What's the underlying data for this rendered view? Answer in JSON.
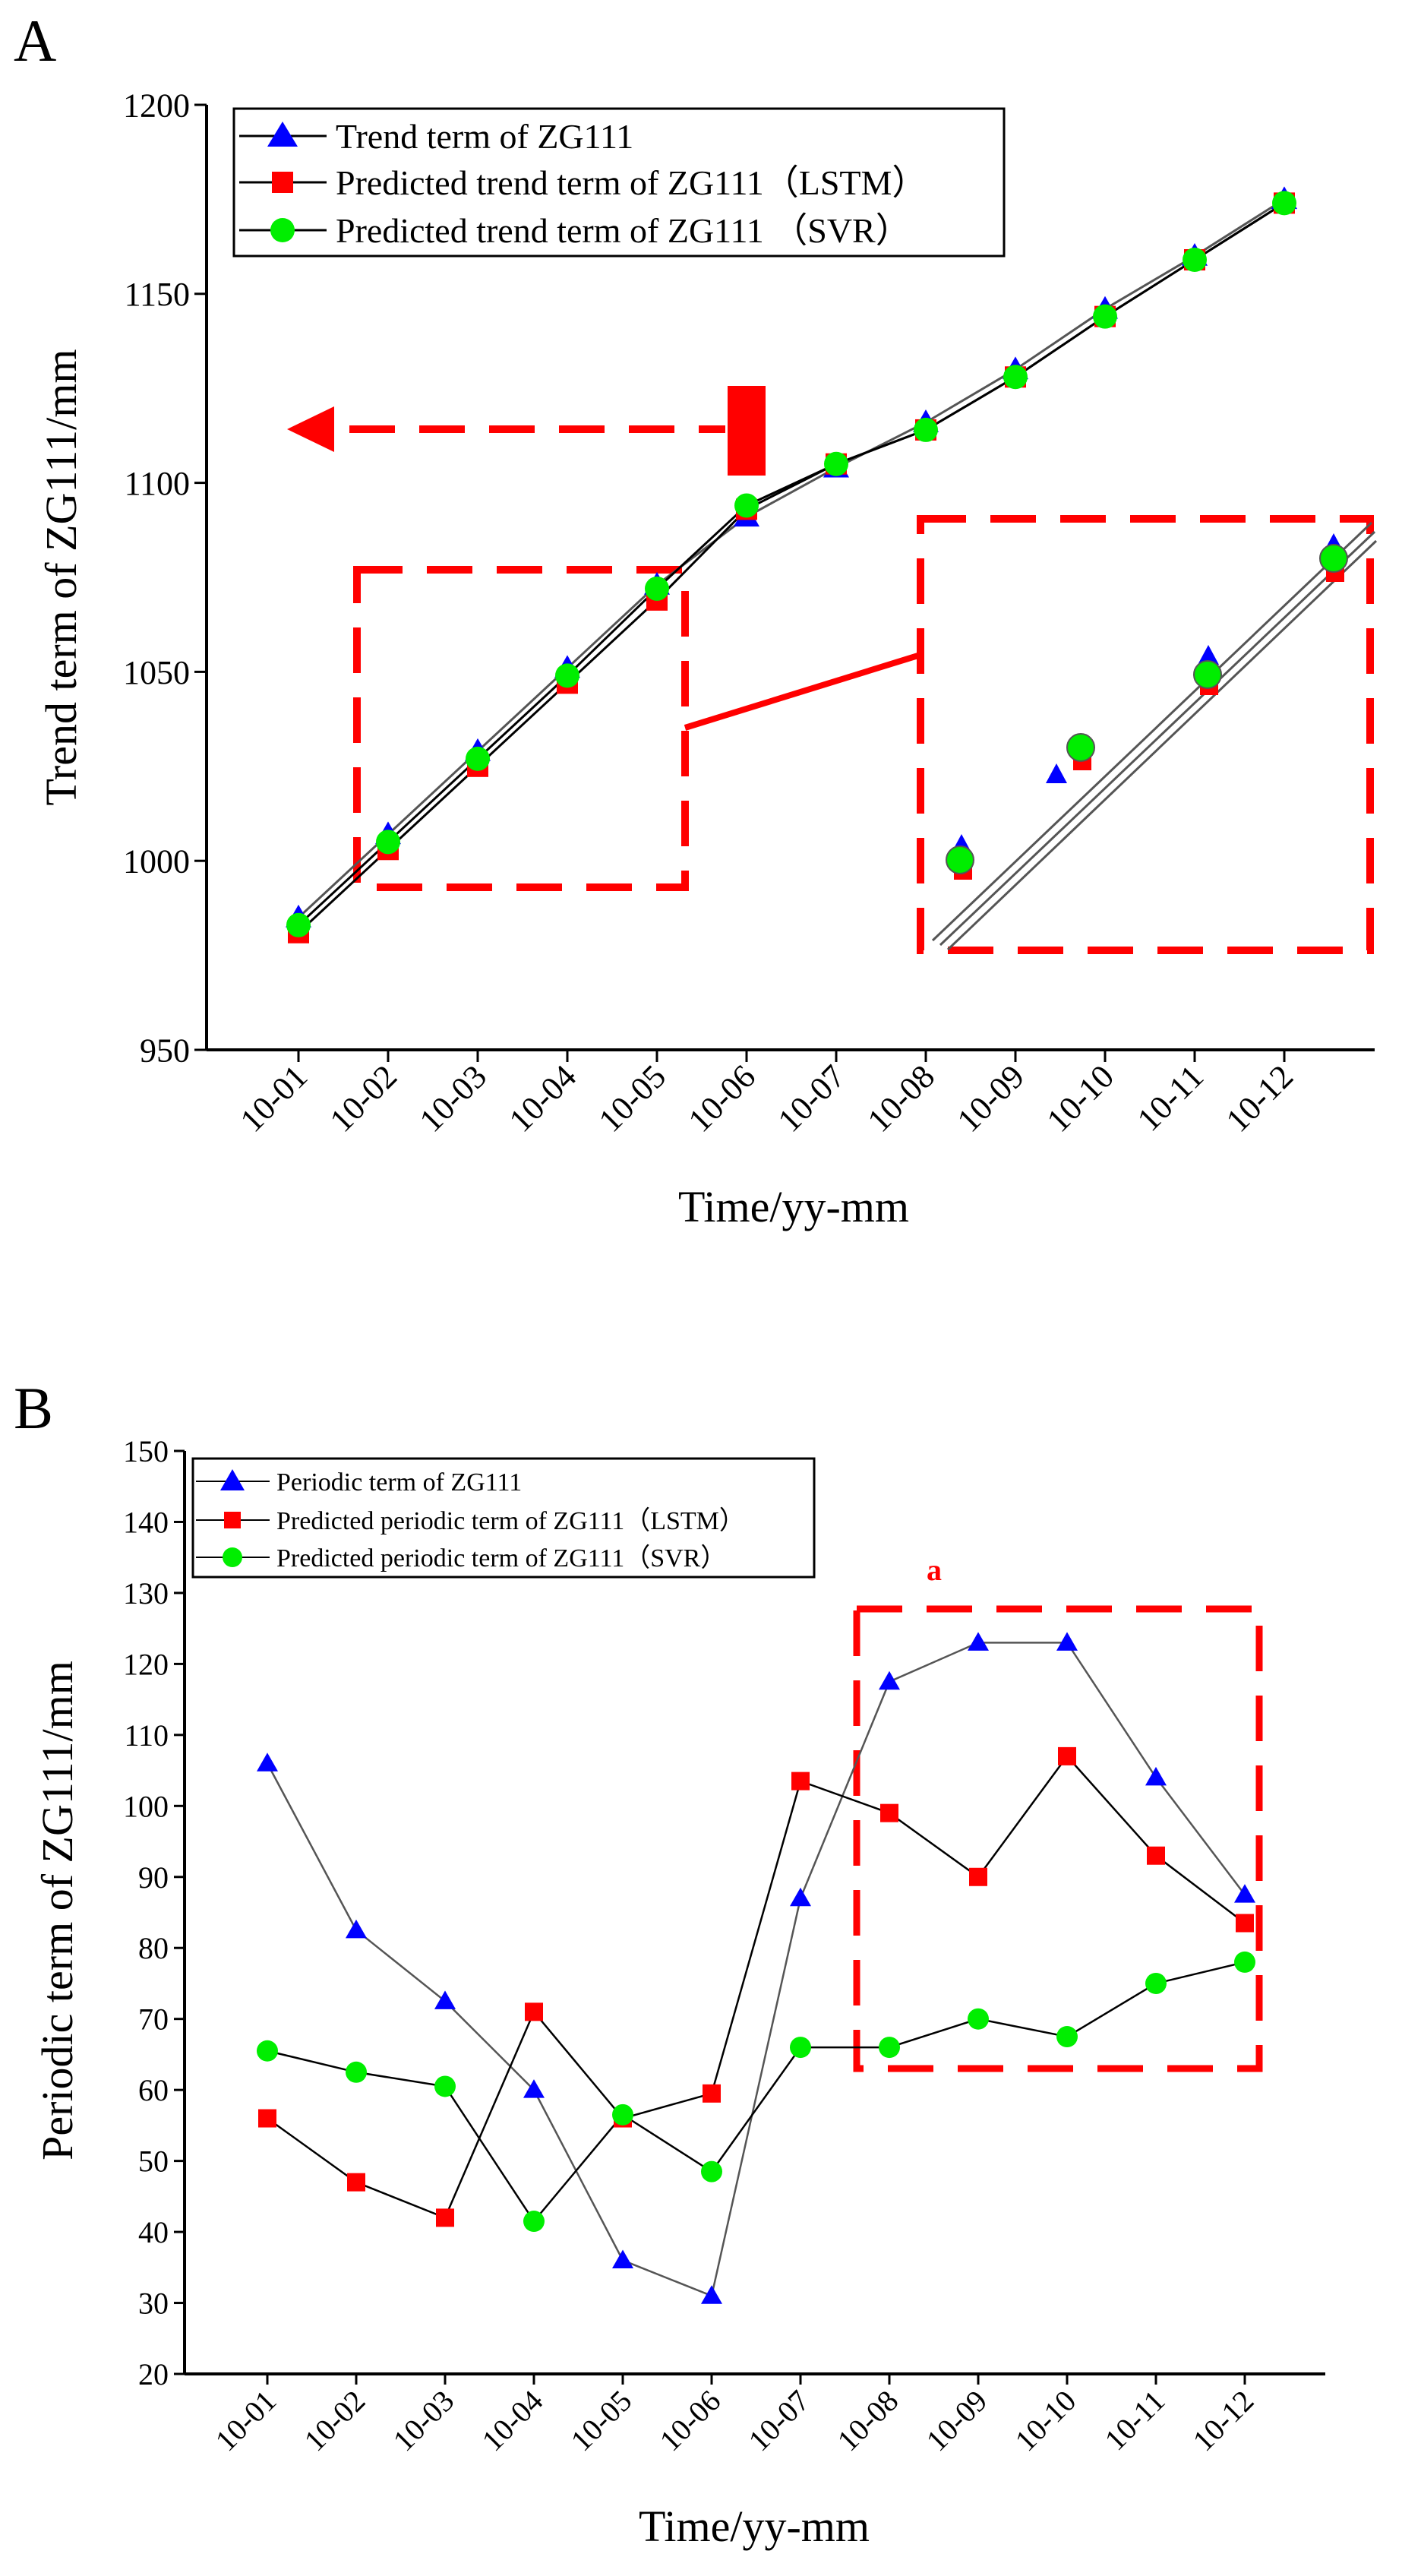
{
  "chart_data": [
    {
      "panel": "A",
      "type": "line",
      "xlabel": "Time/yy-mm",
      "ylabel": "Trend term of ZG111/mm",
      "ylim": [
        950,
        1200
      ],
      "yticks": [
        950,
        1000,
        1050,
        1100,
        1150,
        1200
      ],
      "categories": [
        "10-01",
        "10-02",
        "10-03",
        "10-04",
        "10-05",
        "10-06",
        "10-07",
        "10-08",
        "10-09",
        "10-10",
        "10-11",
        "10-12"
      ],
      "series": [
        {
          "name": "Trend term of ZG111",
          "marker": "triangle",
          "color": "#0000ff",
          "values": [
            985,
            1007,
            1029,
            1051,
            1073,
            1091,
            1104,
            1116,
            1130,
            1146,
            1160,
            1175
          ]
        },
        {
          "name": "Predicted trend term of ZG111（LSTM）",
          "marker": "square",
          "color": "#ff0000",
          "values": [
            981,
            1003,
            1025,
            1047,
            1069,
            1093,
            1105,
            1114,
            1128,
            1144,
            1159,
            1174
          ]
        },
        {
          "name": "Predicted trend term of ZG111 （SVR）",
          "marker": "circle",
          "color": "#00ee00",
          "values": [
            983,
            1005,
            1027,
            1049,
            1072,
            1094,
            1105,
            1114,
            1128,
            1144,
            1159,
            1174
          ]
        }
      ],
      "legend": "top-left"
    },
    {
      "panel": "B",
      "type": "line",
      "xlabel": "Time/yy-mm",
      "ylabel": "Periodic term of ZG111/mm",
      "ylim": [
        20,
        150
      ],
      "yticks": [
        20,
        30,
        40,
        50,
        60,
        70,
        80,
        90,
        100,
        110,
        120,
        130,
        140,
        150
      ],
      "categories": [
        "10-01",
        "10-02",
        "10-03",
        "10-04",
        "10-05",
        "10-06",
        "10-07",
        "10-08",
        "10-09",
        "10-10",
        "10-11",
        "10-12"
      ],
      "series": [
        {
          "name": "Periodic term of ZG111",
          "marker": "triangle",
          "color": "#0000ff",
          "values": [
            106,
            82.5,
            72.5,
            60,
            36,
            31,
            87,
            117.5,
            123,
            123,
            104,
            87.5
          ]
        },
        {
          "name": "Predicted periodic term of ZG111（LSTM）",
          "marker": "square",
          "color": "#ff0000",
          "values": [
            56,
            47,
            42,
            71,
            56,
            59.5,
            103.5,
            99,
            90,
            107,
            93,
            83.5
          ]
        },
        {
          "name": "Predicted periodic term of ZG111（SVR）",
          "marker": "circle",
          "color": "#00ee00",
          "values": [
            65.5,
            62.5,
            60.5,
            41.5,
            56.5,
            48.5,
            66,
            66,
            70,
            67.5,
            75,
            78
          ]
        }
      ],
      "legend": "top-left",
      "annotation": "a"
    }
  ]
}
